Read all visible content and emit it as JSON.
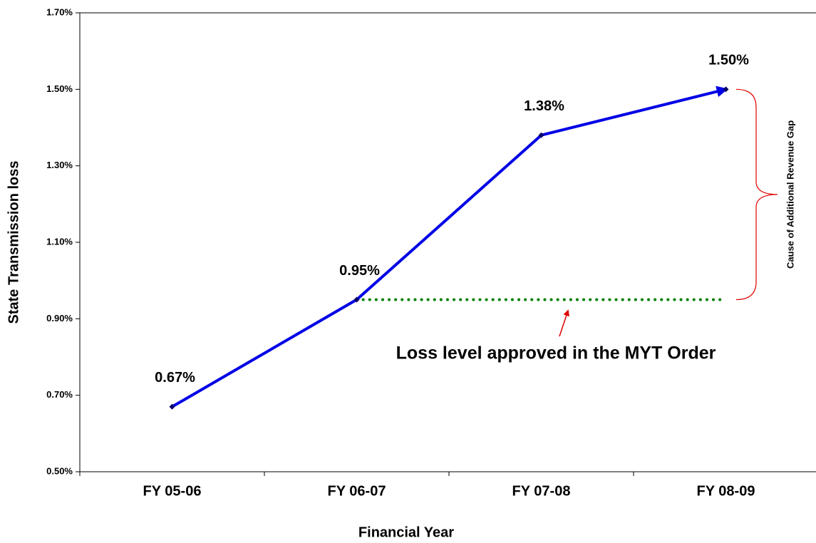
{
  "chart_data": {
    "type": "line",
    "x_label": "Financial Year",
    "y_label": "State Transmission loss",
    "categories": [
      "FY 05-06",
      "FY 06-07",
      "FY 07-08",
      "FY 08-09"
    ],
    "series": [
      {
        "color": "#0000e6",
        "values": [
          0.67,
          0.95,
          1.38,
          1.5
        ],
        "value_labels": [
          "0.67%",
          "0.95%",
          "1.38%",
          "1.50%"
        ]
      }
    ],
    "ylim": [
      0.5,
      1.7
    ],
    "yticks": [
      {
        "value": 0.5,
        "label": "0.50%"
      },
      {
        "value": 0.7,
        "label": "0.70%"
      },
      {
        "value": 0.9,
        "label": "0.90%"
      },
      {
        "value": 1.1,
        "label": "1.10%"
      },
      {
        "value": 1.3,
        "label": "1.30%"
      },
      {
        "value": 1.5,
        "label": "1.50%"
      },
      {
        "value": 1.7,
        "label": "1.70%"
      }
    ],
    "reference_line": {
      "value": 0.95,
      "label": "Loss level approved in the MYT Order",
      "color": "#008000"
    },
    "brace_annotation": "Cause of Additional Revenue Gap"
  }
}
